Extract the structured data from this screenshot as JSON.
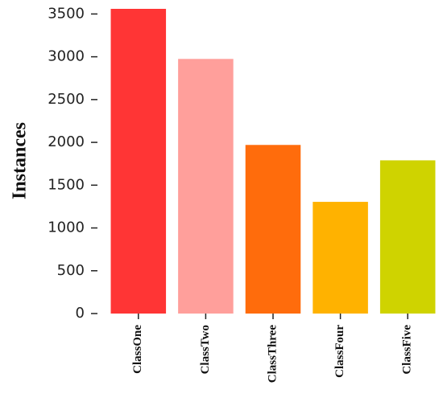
{
  "chart_data": {
    "type": "bar",
    "ylabel": "Instances",
    "categories": [
      "ClassOne",
      "ClassTwo",
      "ClassThree",
      "ClassFour",
      "ClassFive"
    ],
    "values": [
      3560,
      2975,
      1970,
      1305,
      1790
    ],
    "colors": [
      "#ff3535",
      "#ff9f9b",
      "#ff6c0c",
      "#ffb200",
      "#cfd300"
    ],
    "ylim": [
      0,
      3560
    ],
    "yticks": [
      0,
      500,
      1000,
      1500,
      2000,
      2500,
      3000,
      3500
    ],
    "grid": false
  }
}
